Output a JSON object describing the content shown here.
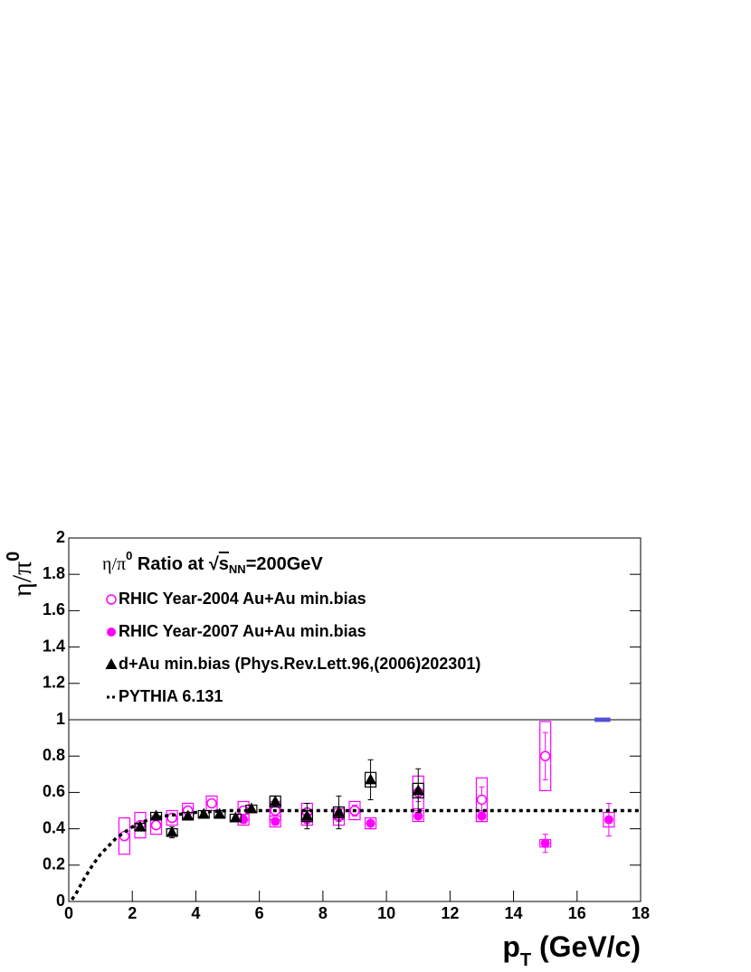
{
  "chart_data": {
    "type": "scatter",
    "title": [
      "η/π",
      "0",
      " Ratio at √",
      "s",
      "NN",
      "=200GeV"
    ],
    "xlabel": [
      "p",
      "T",
      " (GeV/c)"
    ],
    "ylabel": [
      "η/π",
      "0"
    ],
    "xlim": [
      0,
      18
    ],
    "ylim": [
      0,
      2
    ],
    "xticks": [
      0,
      2,
      4,
      6,
      8,
      10,
      12,
      14,
      16,
      18
    ],
    "yticks": [
      0,
      0.2,
      0.4,
      0.6,
      0.8,
      1,
      1.2,
      1.4,
      1.6,
      1.8,
      2
    ],
    "hline": 1,
    "norm_band": {
      "xlim": [
        16.55,
        17.05
      ],
      "ylim": [
        0.988,
        1.012
      ],
      "color": "#5050d8"
    },
    "series": [
      {
        "name": "RHIC Year-2004 Au+Au min.bias",
        "marker": "open-circle",
        "color": "#ff00ff",
        "x": [
          1.75,
          2.25,
          2.75,
          3.25,
          3.75,
          4.5,
          5.5,
          6.5,
          7.5,
          8.5,
          9,
          11,
          13,
          15
        ],
        "values": [
          0.36,
          0.42,
          0.42,
          0.46,
          0.5,
          0.54,
          0.5,
          0.5,
          0.49,
          0.47,
          0.5,
          0.6,
          0.56,
          0.8
        ],
        "errors": [
          0.02,
          0.02,
          0.02,
          0.02,
          0.02,
          0.02,
          0.02,
          0.02,
          0.02,
          0.03,
          0.03,
          0.05,
          0.07,
          0.13
        ],
        "sys": [
          0.1,
          0.07,
          0.05,
          0.04,
          0.04,
          0.04,
          0.05,
          0.05,
          0.05,
          0.05,
          0.05,
          0.09,
          0.12,
          0.19
        ]
      },
      {
        "name": "RHIC Year-2007 Au+Au min.bias",
        "marker": "circle",
        "color": "#ff00ff",
        "x": [
          5.5,
          6.5,
          7.5,
          8.5,
          9.5,
          11,
          13,
          15,
          17
        ],
        "values": [
          0.45,
          0.44,
          0.45,
          0.48,
          0.43,
          0.47,
          0.47,
          0.32,
          0.45
        ],
        "errors": [
          0.02,
          0.02,
          0.02,
          0.02,
          0.03,
          0.03,
          0.03,
          0.05,
          0.09
        ],
        "sys": [
          0.03,
          0.03,
          0.03,
          0.03,
          0.03,
          0.03,
          0.03,
          0.02,
          0.04
        ]
      },
      {
        "name": "d+Au min.bias (Phys.Rev.Lett.96,(2006)202301)",
        "marker": "triangle",
        "color": "#000000",
        "x": [
          2.25,
          2.75,
          3.25,
          3.75,
          4.25,
          4.75,
          5.25,
          5.75,
          6.5,
          7.5,
          8.5,
          9.5,
          11
        ],
        "values": [
          0.41,
          0.47,
          0.38,
          0.47,
          0.48,
          0.48,
          0.46,
          0.51,
          0.55,
          0.47,
          0.49,
          0.67,
          0.61
        ],
        "errors": [
          0.02,
          0.02,
          0.03,
          0.02,
          0.02,
          0.02,
          0.02,
          0.02,
          0.03,
          0.07,
          0.09,
          0.11,
          0.12
        ],
        "sys": [
          0.02,
          0.02,
          0.02,
          0.02,
          0.02,
          0.02,
          0.02,
          0.02,
          0.03,
          0.03,
          0.03,
          0.04,
          0.04
        ]
      },
      {
        "name": "PYTHIA 6.131",
        "marker": "dashed-line",
        "color": "#000000",
        "x": [
          0.1,
          0.25,
          0.5,
          0.75,
          1,
          1.5,
          2,
          2.5,
          3,
          4,
          5,
          18
        ],
        "values": [
          0.01,
          0.05,
          0.13,
          0.2,
          0.26,
          0.35,
          0.41,
          0.45,
          0.47,
          0.49,
          0.5,
          0.5
        ]
      }
    ]
  }
}
